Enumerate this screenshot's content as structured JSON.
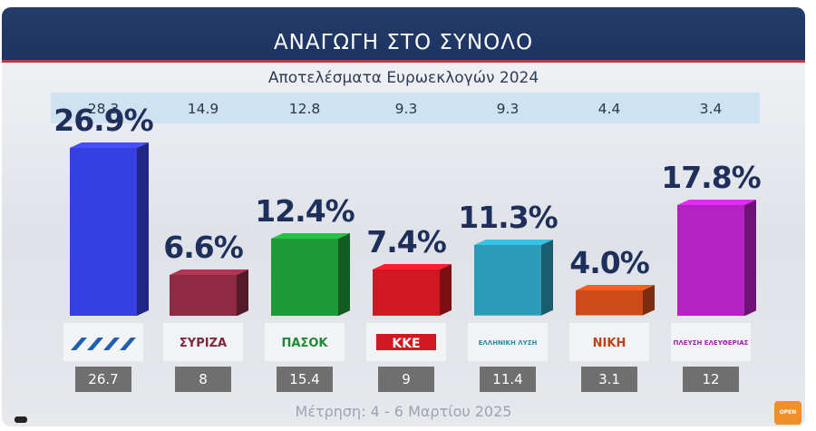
{
  "title": "ΑΝΑΓΩΓΗ ΣΤΟ ΣΥΝΟΛΟ",
  "subtitle": "Αποτελέσματα Ευρωεκλογών 2024",
  "footer": "Μέτρηση: 4 - 6 Μαρτίου 2025",
  "chart_data": {
    "type": "bar",
    "title": "ΑΝΑΓΩΓΗ ΣΤΟ ΣΥΝΟΛΟ",
    "subtitle": "Αποτελέσματα Ευρωεκλογών 2024",
    "categories": [
      "ΝΔ",
      "ΣΥΡΙΖΑ",
      "ΠΑΣΟΚ",
      "ΚΚΕ",
      "Ελληνική Λύση",
      "ΝΙΚΗ",
      "Πλεύση Ελευθερίας"
    ],
    "values": [
      26.9,
      6.6,
      12.4,
      7.4,
      11.3,
      4.0,
      17.8
    ],
    "value_labels": [
      "26.9%",
      "6.6%",
      "12.4%",
      "7.4%",
      "11.3%",
      "4.0%",
      "17.8%"
    ],
    "euro_2024": [
      "28.3",
      "14.9",
      "12.8",
      "9.3",
      "9.3",
      "4.4",
      "3.4"
    ],
    "previous_measurement": [
      "26.7",
      "8",
      "15.4",
      "9",
      "11.4",
      "3.1",
      "12"
    ],
    "colors": [
      "#3640e0",
      "#8e2a44",
      "#1f9a38",
      "#d01822",
      "#2b9bb7",
      "#cf4a1a",
      "#b522c4"
    ],
    "logo_texts": [
      "",
      "ΣΥΡΙΖΑ",
      "ΠΑΣΟΚ",
      "ΚΚΕ",
      "ΕΛΛΗΝΙΚΗ ΛΥΣΗ",
      "ΝΙΚΗ",
      "ΠΛΕΥΣΗ ΕΛΕΥΘΕΡΙΑΣ"
    ],
    "ylim": [
      0,
      30
    ]
  },
  "badge": "OPEN"
}
